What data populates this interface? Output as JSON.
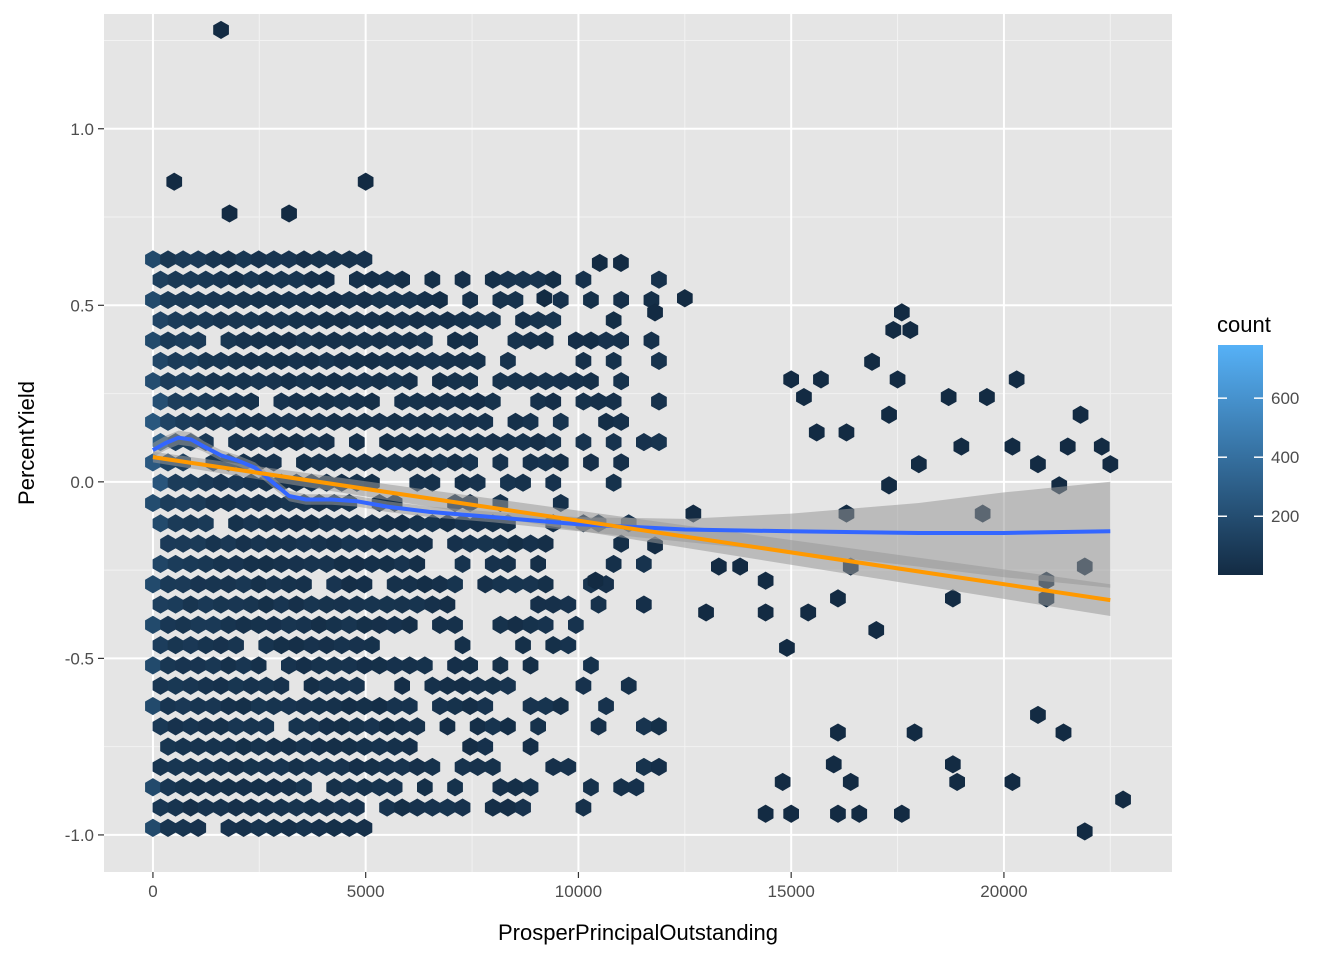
{
  "chart_data": {
    "type": "hexbin",
    "xlabel": "ProsperPrincipalOutstanding",
    "ylabel": "PercentYield",
    "xlim": [
      -1150,
      23950
    ],
    "ylim": [
      -1.105,
      1.325
    ],
    "x_ticks": [
      0,
      5000,
      10000,
      15000,
      20000
    ],
    "x_tick_labels": [
      "0",
      "5000",
      "10000",
      "15000",
      "20000"
    ],
    "y_ticks": [
      -1.0,
      -0.5,
      0.0,
      0.5,
      1.0
    ],
    "y_tick_labels": [
      "-1.0",
      "-0.5",
      "0.0",
      "0.5",
      "1.0"
    ],
    "grid": true,
    "panel_background": "#e5e5e5",
    "legend": {
      "title": "count",
      "position": "right",
      "range": [
        1,
        780
      ],
      "colors": [
        "#132b43",
        "#56b1f7"
      ],
      "ticks": [
        200,
        400,
        600
      ],
      "tick_labels": [
        "200",
        "400",
        "600"
      ]
    },
    "hex_bins": {
      "x_width": 355,
      "y_height": 0.0575,
      "dense_region": {
        "xmin": 0,
        "xmax": 5000,
        "ymin": -0.98,
        "ymax": 0.68,
        "peak_x": 0,
        "peak_y": 0.1,
        "peak_count": 780
      },
      "mid_region": {
        "xmin": 5000,
        "xmax": 12000,
        "ymin": -0.95,
        "ymax": 0.6
      },
      "sparse_points": [
        [
          1600,
          1.28
        ],
        [
          500,
          0.85
        ],
        [
          5000,
          0.85
        ],
        [
          1800,
          0.76
        ],
        [
          3200,
          0.76
        ],
        [
          10500,
          0.62
        ],
        [
          11000,
          0.62
        ],
        [
          9200,
          0.52
        ],
        [
          12500,
          0.52
        ],
        [
          11800,
          0.48
        ],
        [
          17600,
          0.48
        ],
        [
          17400,
          0.43
        ],
        [
          17800,
          0.43
        ],
        [
          16900,
          0.34
        ],
        [
          15000,
          0.29
        ],
        [
          15700,
          0.29
        ],
        [
          17500,
          0.29
        ],
        [
          20300,
          0.29
        ],
        [
          15300,
          0.24
        ],
        [
          18700,
          0.24
        ],
        [
          19600,
          0.24
        ],
        [
          17300,
          0.19
        ],
        [
          21800,
          0.19
        ],
        [
          15600,
          0.14
        ],
        [
          16300,
          0.14
        ],
        [
          19000,
          0.1
        ],
        [
          20200,
          0.1
        ],
        [
          21500,
          0.1
        ],
        [
          22300,
          0.1
        ],
        [
          18000,
          0.05
        ],
        [
          20800,
          0.05
        ],
        [
          22500,
          0.05
        ],
        [
          17300,
          -0.01
        ],
        [
          21300,
          -0.01
        ],
        [
          12700,
          -0.09
        ],
        [
          16300,
          -0.09
        ],
        [
          19500,
          -0.09
        ],
        [
          11800,
          -0.18
        ],
        [
          13300,
          -0.24
        ],
        [
          13800,
          -0.24
        ],
        [
          16400,
          -0.24
        ],
        [
          21000,
          -0.28
        ],
        [
          21900,
          -0.24
        ],
        [
          10400,
          -0.28
        ],
        [
          14400,
          -0.28
        ],
        [
          16100,
          -0.33
        ],
        [
          18800,
          -0.33
        ],
        [
          21000,
          -0.33
        ],
        [
          13000,
          -0.37
        ],
        [
          14400,
          -0.37
        ],
        [
          15400,
          -0.37
        ],
        [
          17000,
          -0.42
        ],
        [
          14900,
          -0.47
        ],
        [
          20800,
          -0.66
        ],
        [
          21400,
          -0.71
        ],
        [
          16100,
          -0.71
        ],
        [
          17900,
          -0.71
        ],
        [
          16000,
          -0.8
        ],
        [
          18800,
          -0.8
        ],
        [
          14800,
          -0.85
        ],
        [
          16400,
          -0.85
        ],
        [
          18900,
          -0.85
        ],
        [
          20200,
          -0.85
        ],
        [
          22800,
          -0.9
        ],
        [
          14400,
          -0.94
        ],
        [
          15000,
          -0.94
        ],
        [
          16100,
          -0.94
        ],
        [
          16600,
          -0.94
        ],
        [
          17600,
          -0.94
        ],
        [
          21900,
          -0.99
        ]
      ]
    },
    "series": [
      {
        "kind": "loess-smooth",
        "color": "#3366ff",
        "x": [
          0,
          300,
          600,
          900,
          1200,
          1600,
          2000,
          2400,
          2800,
          3200,
          3600,
          4200,
          4800,
          5500,
          6500,
          8000,
          10000,
          12500,
          15000,
          18000,
          20000,
          22500
        ],
        "y": [
          0.09,
          0.11,
          0.125,
          0.12,
          0.1,
          0.075,
          0.06,
          0.04,
          0.0,
          -0.04,
          -0.05,
          -0.05,
          -0.055,
          -0.07,
          -0.085,
          -0.1,
          -0.12,
          -0.135,
          -0.14,
          -0.145,
          -0.145,
          -0.14
        ],
        "band_lower": [
          0.07,
          0.09,
          0.105,
          0.1,
          0.085,
          0.06,
          0.045,
          0.025,
          -0.015,
          -0.055,
          -0.065,
          -0.065,
          -0.07,
          -0.085,
          -0.1,
          -0.115,
          -0.14,
          -0.17,
          -0.2,
          -0.24,
          -0.27,
          -0.3
        ],
        "band_upper": [
          0.11,
          0.13,
          0.145,
          0.14,
          0.115,
          0.09,
          0.075,
          0.055,
          0.015,
          -0.025,
          -0.035,
          -0.035,
          -0.04,
          -0.055,
          -0.07,
          -0.085,
          -0.1,
          -0.105,
          -0.09,
          -0.06,
          -0.03,
          0.0
        ]
      },
      {
        "kind": "linear-fit",
        "color": "#ff9900",
        "x": [
          0,
          22500
        ],
        "y": [
          0.07,
          -0.335
        ],
        "band_lower": [
          0.055,
          -0.38
        ],
        "band_upper": [
          0.085,
          -0.29
        ]
      }
    ]
  }
}
